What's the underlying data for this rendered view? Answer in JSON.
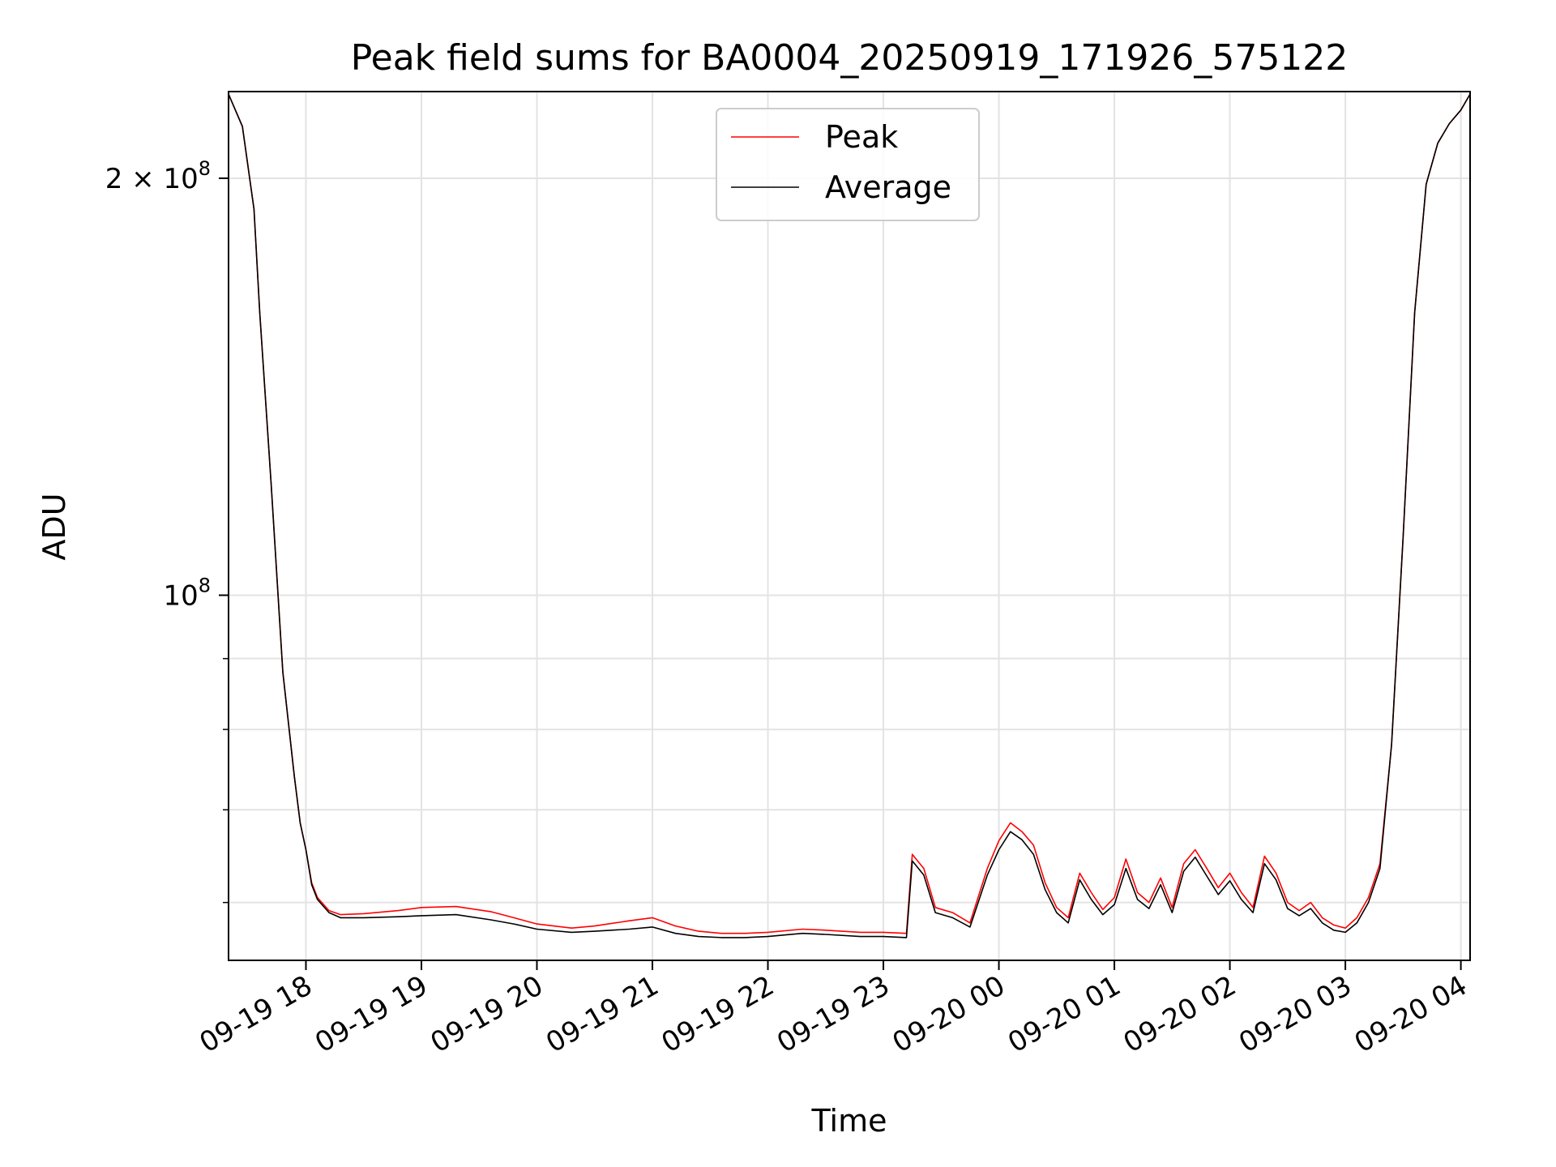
{
  "chart_data": {
    "type": "line",
    "title": "Peak field sums for BA0004_20250919_171926_575122",
    "xlabel": "Time",
    "ylabel": "ADU",
    "yscale": "log",
    "ylim": [
      54500000,
      231000000
    ],
    "x_unit": "hours since 2025-09-19 00:00",
    "xlim": [
      17.33,
      28.08
    ],
    "grid": true,
    "legend_position": "upper-center",
    "x_ticks": [
      {
        "value": 18,
        "label": "09-19 18"
      },
      {
        "value": 19,
        "label": "09-19 19"
      },
      {
        "value": 20,
        "label": "09-19 20"
      },
      {
        "value": 21,
        "label": "09-19 21"
      },
      {
        "value": 22,
        "label": "09-19 22"
      },
      {
        "value": 23,
        "label": "09-19 23"
      },
      {
        "value": 24,
        "label": "09-20 00"
      },
      {
        "value": 25,
        "label": "09-20 01"
      },
      {
        "value": 26,
        "label": "09-20 02"
      },
      {
        "value": 27,
        "label": "09-20 03"
      },
      {
        "value": 28,
        "label": "09-20 04"
      }
    ],
    "y_major_ticks": [
      {
        "value": 100000000,
        "base": "10",
        "exp": "8",
        "mult": ""
      },
      {
        "value": 200000000,
        "base": "10",
        "exp": "8",
        "mult": "2 × "
      }
    ],
    "y_minor_ticks": [
      60000000,
      70000000,
      80000000,
      90000000
    ],
    "series": [
      {
        "name": "Peak",
        "color": "#ff0000",
        "x": [
          17.33,
          17.45,
          17.55,
          17.6,
          17.7,
          17.8,
          17.9,
          17.95,
          18.0,
          18.05,
          18.1,
          18.2,
          18.3,
          18.5,
          18.8,
          19.0,
          19.3,
          19.6,
          19.8,
          20.0,
          20.3,
          20.5,
          20.8,
          21.0,
          21.2,
          21.4,
          21.6,
          21.8,
          22.0,
          22.3,
          22.5,
          22.8,
          23.0,
          23.2,
          23.25,
          23.35,
          23.45,
          23.6,
          23.75,
          23.9,
          24.0,
          24.1,
          24.2,
          24.3,
          24.4,
          24.5,
          24.6,
          24.7,
          24.8,
          24.9,
          25.0,
          25.1,
          25.2,
          25.3,
          25.4,
          25.5,
          25.6,
          25.7,
          25.8,
          25.9,
          26.0,
          26.1,
          26.2,
          26.3,
          26.4,
          26.5,
          26.6,
          26.7,
          26.8,
          26.9,
          27.0,
          27.1,
          27.2,
          27.3,
          27.4,
          27.5,
          27.6,
          27.7,
          27.8,
          27.9,
          28.0,
          28.08
        ],
        "y": [
          230000000,
          218000000,
          190000000,
          160000000,
          120000000,
          88000000,
          74000000,
          68500000,
          65500000,
          62000000,
          60500000,
          59200000,
          58800000,
          58900000,
          59200000,
          59500000,
          59600000,
          59100000,
          58500000,
          57900000,
          57500000,
          57700000,
          58200000,
          58500000,
          57700000,
          57200000,
          57000000,
          57000000,
          57100000,
          57400000,
          57300000,
          57100000,
          57100000,
          57000000,
          65000000,
          63500000,
          59500000,
          59000000,
          58000000,
          63500000,
          66500000,
          68500000,
          67500000,
          66000000,
          62000000,
          59500000,
          58500000,
          63000000,
          61000000,
          59300000,
          60500000,
          64500000,
          61000000,
          60000000,
          62500000,
          59500000,
          64000000,
          65500000,
          63500000,
          61500000,
          63000000,
          61000000,
          59500000,
          64800000,
          63000000,
          60000000,
          59200000,
          60000000,
          58500000,
          57800000,
          57500000,
          58500000,
          60500000,
          64000000,
          78000000,
          110000000,
          160000000,
          198000000,
          212000000,
          219000000,
          224000000,
          230000000
        ]
      },
      {
        "name": "Average",
        "color": "#000000",
        "x": [
          17.33,
          17.45,
          17.55,
          17.6,
          17.7,
          17.8,
          17.9,
          17.95,
          18.0,
          18.05,
          18.1,
          18.2,
          18.3,
          18.5,
          18.8,
          19.0,
          19.3,
          19.6,
          19.8,
          20.0,
          20.3,
          20.5,
          20.8,
          21.0,
          21.2,
          21.4,
          21.6,
          21.8,
          22.0,
          22.3,
          22.5,
          22.8,
          23.0,
          23.2,
          23.25,
          23.35,
          23.45,
          23.6,
          23.75,
          23.9,
          24.0,
          24.1,
          24.2,
          24.3,
          24.4,
          24.5,
          24.6,
          24.7,
          24.8,
          24.9,
          25.0,
          25.1,
          25.2,
          25.3,
          25.4,
          25.5,
          25.6,
          25.7,
          25.8,
          25.9,
          26.0,
          26.1,
          26.2,
          26.3,
          26.4,
          26.5,
          26.6,
          26.7,
          26.8,
          26.9,
          27.0,
          27.1,
          27.2,
          27.3,
          27.4,
          27.5,
          27.6,
          27.7,
          27.8,
          27.9,
          28.0,
          28.08
        ],
        "y": [
          230000000,
          218000000,
          190000000,
          160000000,
          120000000,
          88000000,
          74000000,
          68500000,
          65500000,
          61800000,
          60300000,
          59000000,
          58500000,
          58500000,
          58600000,
          58700000,
          58800000,
          58300000,
          57900000,
          57400000,
          57100000,
          57200000,
          57400000,
          57600000,
          57000000,
          56700000,
          56600000,
          56600000,
          56700000,
          57000000,
          56900000,
          56700000,
          56700000,
          56600000,
          64300000,
          62800000,
          59000000,
          58500000,
          57600000,
          62800000,
          65500000,
          67500000,
          66600000,
          65000000,
          61300000,
          59000000,
          58000000,
          62300000,
          60300000,
          58800000,
          59800000,
          63500000,
          60300000,
          59400000,
          61800000,
          59000000,
          63200000,
          64700000,
          62700000,
          60800000,
          62200000,
          60300000,
          59000000,
          64000000,
          62300000,
          59400000,
          58700000,
          59400000,
          58000000,
          57300000,
          57100000,
          58000000,
          60000000,
          63500000,
          78000000,
          110000000,
          160000000,
          198000000,
          212000000,
          219000000,
          224000000,
          230000000
        ]
      }
    ]
  }
}
